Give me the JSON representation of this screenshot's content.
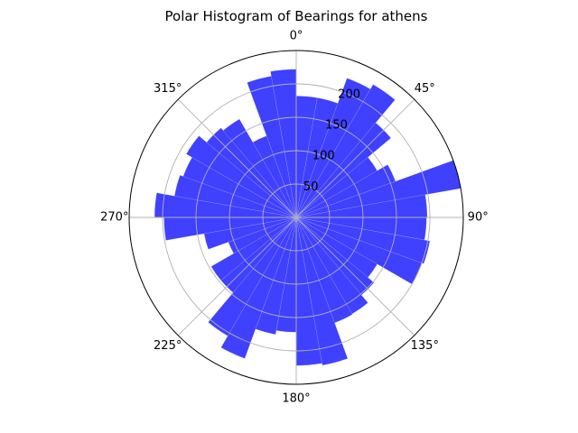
{
  "chart_data": {
    "type": "bar",
    "projection": "polar",
    "title": "Polar Histogram of Bearings for athens",
    "theta_zero": "N",
    "theta_direction": "clockwise",
    "theta_ticks": [
      "0°",
      "45°",
      "90°",
      "135°",
      "180°",
      "225°",
      "270°",
      "315°"
    ],
    "r_ticks": [
      "50",
      "100",
      "150",
      "200"
    ],
    "r_tick_values": [
      50,
      100,
      150,
      200
    ],
    "rlim": [
      0,
      250
    ],
    "bin_width_deg": 10,
    "grid": true,
    "bar_color": "#0000ff",
    "bar_alpha": 0.75,
    "categories": [
      "0°",
      "10°",
      "20°",
      "30°",
      "40°",
      "50°",
      "60°",
      "70°",
      "80°",
      "90°",
      "100°",
      "110°",
      "120°",
      "130°",
      "140°",
      "150°",
      "160°",
      "170°",
      "180°",
      "190°",
      "200°",
      "210°",
      "220°",
      "230°",
      "240°",
      "250°",
      "260°",
      "270°",
      "280°",
      "290°",
      "300°",
      "310°",
      "320°",
      "330°",
      "340°",
      "350°"
    ],
    "values": [
      182,
      182,
      222,
      230,
      185,
      140,
      158,
      250,
      196,
      195,
      203,
      200,
      140,
      152,
      167,
      168,
      225,
      222,
      172,
      178,
      225,
      205,
      147,
      147,
      108,
      140,
      198,
      212,
      185,
      180,
      190,
      175,
      170,
      130,
      215,
      222
    ]
  }
}
